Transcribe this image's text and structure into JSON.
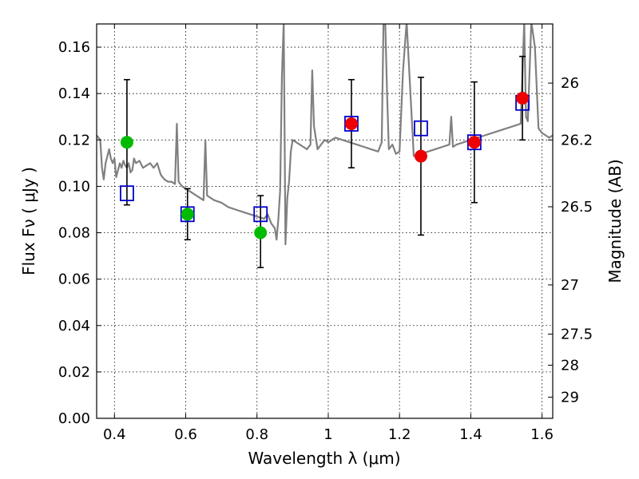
{
  "chart_data": {
    "type": "scatter",
    "xlabel": "Wavelength  λ (μm)",
    "ylabel": "Flux  Fν  ( μJy )",
    "ylabel_right": "Magnitude (AB)",
    "xlim": [
      0.35,
      1.63
    ],
    "ylim": [
      0.0,
      0.17
    ],
    "grid": true,
    "x_ticks": [
      0.4,
      0.6,
      0.8,
      1.0,
      1.2,
      1.4,
      1.6
    ],
    "x_tick_labels": [
      "0.4",
      "0.6",
      "0.8",
      "1",
      "1.2",
      "1.4",
      "1.6"
    ],
    "y_ticks": [
      0.0,
      0.02,
      0.04,
      0.06,
      0.08,
      0.1,
      0.12,
      0.14,
      0.16
    ],
    "y_tick_labels": [
      "0.00",
      "0.02",
      "0.04",
      "0.06",
      "0.08",
      "0.10",
      "0.12",
      "0.14",
      "0.16"
    ],
    "right_ticks": [
      {
        "flux": 0.1445,
        "label": "26"
      },
      {
        "flux": 0.12,
        "label": "26.2"
      },
      {
        "flux": 0.0912,
        "label": "26.5"
      },
      {
        "flux": 0.0575,
        "label": "27"
      },
      {
        "flux": 0.0363,
        "label": "27.5"
      },
      {
        "flux": 0.0229,
        "label": "28"
      },
      {
        "flux": 0.0091,
        "label": "29"
      }
    ],
    "series": [
      {
        "style": "line",
        "color": "#808080",
        "x": [
          0.35,
          0.36,
          0.365,
          0.37,
          0.375,
          0.38,
          0.385,
          0.39,
          0.395,
          0.4,
          0.405,
          0.41,
          0.415,
          0.42,
          0.425,
          0.43,
          0.435,
          0.44,
          0.445,
          0.45,
          0.455,
          0.46,
          0.47,
          0.48,
          0.49,
          0.5,
          0.51,
          0.52,
          0.53,
          0.54,
          0.55,
          0.56,
          0.57,
          0.575,
          0.58,
          0.585,
          0.59,
          0.6,
          0.62,
          0.64,
          0.65,
          0.655,
          0.66,
          0.67,
          0.68,
          0.7,
          0.72,
          0.74,
          0.76,
          0.78,
          0.8,
          0.82,
          0.83,
          0.84,
          0.85,
          0.855,
          0.86,
          0.865,
          0.87,
          0.875,
          0.88,
          0.885,
          0.89,
          0.895,
          0.9,
          0.91,
          0.92,
          0.93,
          0.94,
          0.95,
          0.955,
          0.96,
          0.965,
          0.97,
          0.98,
          0.99,
          1.0,
          1.02,
          1.04,
          1.06,
          1.08,
          1.1,
          1.12,
          1.14,
          1.15,
          1.155,
          1.16,
          1.165,
          1.17,
          1.18,
          1.19,
          1.2,
          1.21,
          1.22,
          1.24,
          1.26,
          1.28,
          1.3,
          1.32,
          1.34,
          1.345,
          1.35,
          1.36,
          1.38,
          1.4,
          1.42,
          1.44,
          1.46,
          1.48,
          1.5,
          1.52,
          1.54,
          1.55,
          1.555,
          1.56,
          1.57,
          1.58,
          1.59,
          1.6,
          1.61,
          1.62,
          1.63
        ],
        "y": [
          0.122,
          0.12,
          0.108,
          0.103,
          0.11,
          0.113,
          0.116,
          0.112,
          0.11,
          0.112,
          0.104,
          0.107,
          0.11,
          0.108,
          0.111,
          0.109,
          0.108,
          0.11,
          0.106,
          0.107,
          0.112,
          0.11,
          0.111,
          0.108,
          0.109,
          0.11,
          0.108,
          0.11,
          0.105,
          0.103,
          0.102,
          0.102,
          0.101,
          0.127,
          0.102,
          0.101,
          0.1,
          0.099,
          0.097,
          0.095,
          0.094,
          0.12,
          0.096,
          0.095,
          0.094,
          0.093,
          0.091,
          0.09,
          0.089,
          0.088,
          0.087,
          0.086,
          0.088,
          0.084,
          0.082,
          0.077,
          0.086,
          0.098,
          0.148,
          0.171,
          0.075,
          0.095,
          0.102,
          0.115,
          0.12,
          0.119,
          0.118,
          0.117,
          0.116,
          0.118,
          0.15,
          0.126,
          0.121,
          0.116,
          0.118,
          0.12,
          0.119,
          0.121,
          0.12,
          0.119,
          0.118,
          0.117,
          0.116,
          0.115,
          0.119,
          0.17,
          0.171,
          0.14,
          0.116,
          0.118,
          0.114,
          0.115,
          0.15,
          0.171,
          0.113,
          0.114,
          0.115,
          0.116,
          0.117,
          0.118,
          0.13,
          0.117,
          0.118,
          0.119,
          0.12,
          0.121,
          0.122,
          0.123,
          0.124,
          0.125,
          0.126,
          0.127,
          0.171,
          0.13,
          0.128,
          0.171,
          0.16,
          0.125,
          0.123,
          0.122,
          0.121,
          0.122
        ]
      },
      {
        "style": "open-square",
        "color": "#0000cc",
        "x": [
          0.435,
          0.605,
          0.81,
          1.065,
          1.26,
          1.41,
          1.545
        ],
        "y": [
          0.097,
          0.088,
          0.088,
          0.127,
          0.125,
          0.119,
          0.136
        ]
      },
      {
        "style": "filled-circle",
        "color": "#00bb00",
        "x": [
          0.435,
          0.605,
          0.81
        ],
        "y": [
          0.119,
          0.088,
          0.08
        ]
      },
      {
        "style": "filled-circle",
        "color": "#ee0000",
        "x": [
          1.065,
          1.26,
          1.41,
          1.545
        ],
        "y": [
          0.127,
          0.113,
          0.119,
          0.138
        ]
      },
      {
        "style": "errorbar",
        "color": "#000000",
        "x": [
          0.435,
          0.605,
          0.81,
          1.065,
          1.26,
          1.41,
          1.545
        ],
        "y_low": [
          0.092,
          0.077,
          0.065,
          0.108,
          0.079,
          0.093,
          0.12
        ],
        "y_high": [
          0.146,
          0.099,
          0.096,
          0.146,
          0.147,
          0.145,
          0.156
        ]
      }
    ]
  }
}
